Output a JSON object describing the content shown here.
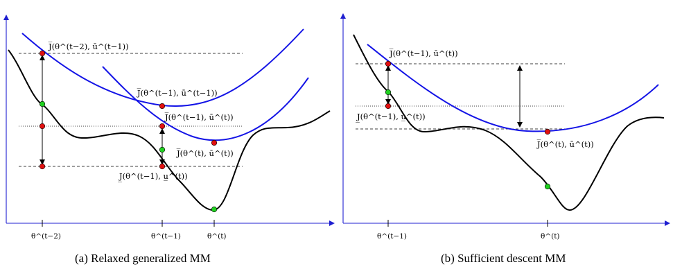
{
  "panel_a": {
    "caption": "(a)  Relaxed generalized MM",
    "labels": {
      "j_top": "J̅(θ^(t−2), ū^(t−1))",
      "j_mid1": "J̅(θ^(t−1), ū^(t−1))",
      "j_mid2": "J̅(θ^(t−1), ū^(t))",
      "j_right": "J̅(θ^(t), ū^(t))",
      "j_lower": "J̲(θ^(t−1), u̲^(t))"
    },
    "ticks": [
      "θ^(t−2)",
      "θ^(t−1)",
      "θ^(t)"
    ]
  },
  "panel_b": {
    "caption": "(b)  Sufficient descent MM",
    "labels": {
      "j_top": "J̅(θ^(t−1), ū^(t))",
      "j_lower": "J̲(θ^(t−1), u̲^(t))",
      "j_right": "J̅(θ^(t), ū^(t))"
    },
    "ticks": [
      "θ^(t−1)",
      "θ^(t)"
    ]
  },
  "colors": {
    "axis": "#1f1fd0",
    "surrogate": "#1414e6",
    "objective": "#000000",
    "point_red": "#e01010",
    "point_green": "#20d020"
  }
}
